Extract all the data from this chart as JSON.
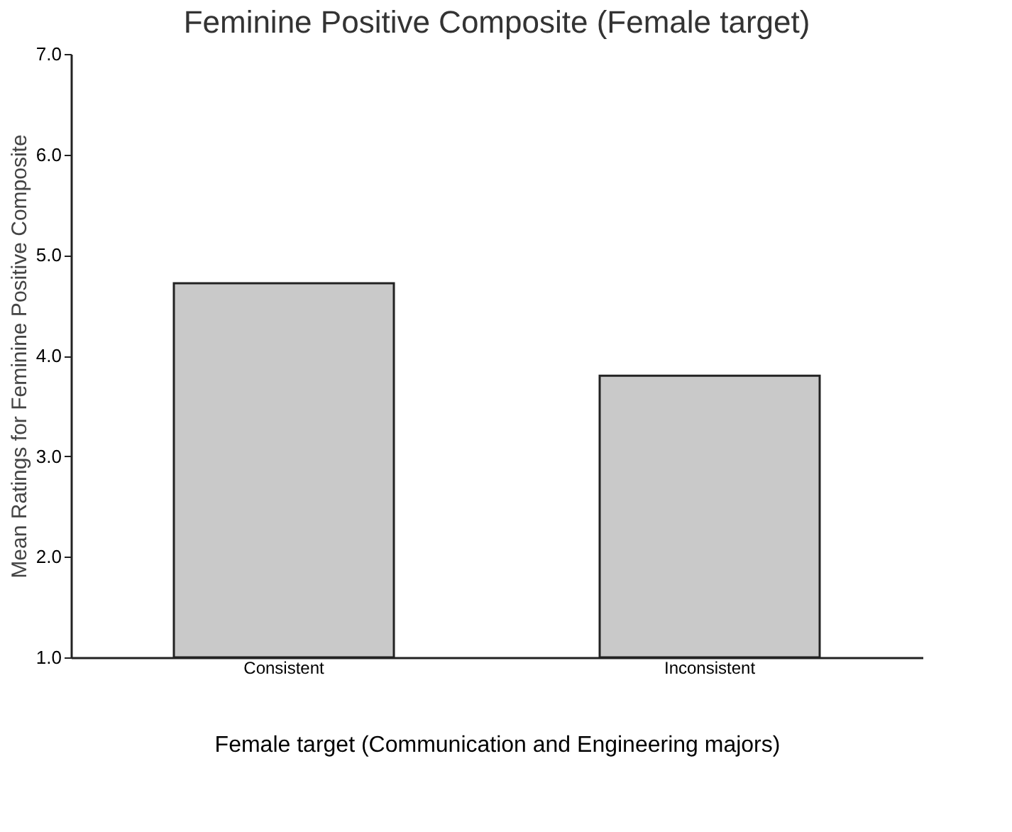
{
  "chart_data": {
    "type": "bar",
    "title": "Feminine Positive Composite (Female target)",
    "xlabel": "Female target (Communication and Engineering majors)",
    "ylabel": "Mean Ratings for Feminine Positive Composite",
    "categories": [
      "Consistent",
      "Inconsistent"
    ],
    "values": [
      4.72,
      3.8
    ],
    "color": "#c9c9c9",
    "ylim": [
      1,
      7
    ],
    "yticks": [
      {
        "value": 1,
        "label": "1.0"
      },
      {
        "value": 2,
        "label": "2.0"
      },
      {
        "value": 3,
        "label": "3.0"
      },
      {
        "value": 4,
        "label": "4.0"
      },
      {
        "value": 5,
        "label": "5.0"
      },
      {
        "value": 6,
        "label": "6.0"
      },
      {
        "value": 7,
        "label": "7.0"
      }
    ],
    "grid": false
  }
}
